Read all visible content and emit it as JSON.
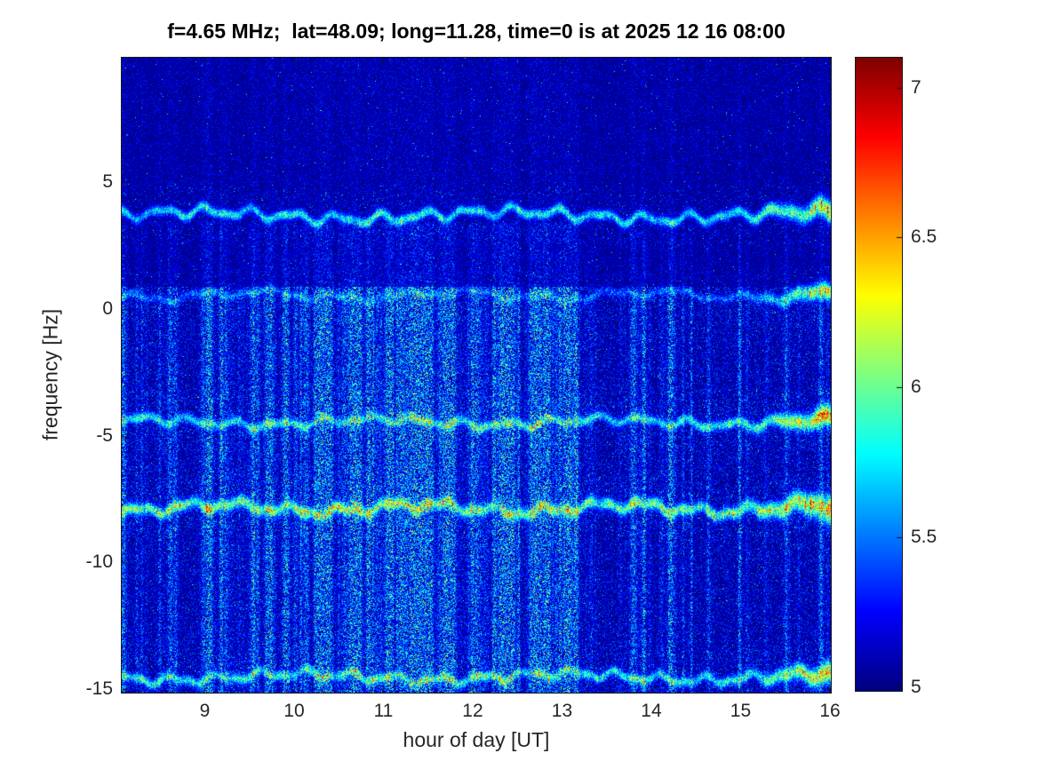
{
  "chart_data": {
    "type": "heatmap",
    "title": "f=4.65 MHz;  lat=48.09; long=11.28, time=0 is at 2025 12 16 08:00",
    "xlabel": "hour of day [UT]",
    "ylabel": "frequency [Hz]",
    "x_range": [
      8.07,
      16
    ],
    "y_range": [
      -15.1,
      9.9
    ],
    "x_ticks": [
      9,
      10,
      11,
      12,
      13,
      14,
      15,
      16
    ],
    "y_ticks": [
      5,
      0,
      -5,
      -10,
      -15
    ],
    "colormap": "jet",
    "color_limits": [
      4.99,
      7.1
    ],
    "colorbar_ticks": [
      7,
      6.5,
      6,
      5.5,
      5
    ],
    "grid": false,
    "legend": "colorbar-right",
    "background_value": 5.0,
    "seed": 7,
    "bands": [
      {
        "name": "band-plus-3.7Hz",
        "center_hz": 3.7,
        "wiggle_hz": 0.28,
        "width_hz": 0.13,
        "base_value": 6.0,
        "end_boost": 1.0
      },
      {
        "name": "band-plus-0.5Hz",
        "center_hz": 0.55,
        "wiggle_hz": 0.22,
        "width_hz": 0.11,
        "base_value": 5.45,
        "end_boost": 1.4
      },
      {
        "name": "band-minus-4.5Hz",
        "center_hz": -4.45,
        "wiggle_hz": 0.22,
        "width_hz": 0.13,
        "base_value": 5.85,
        "end_boost": 1.3
      },
      {
        "name": "band-minus-7.8Hz",
        "center_hz": -7.85,
        "wiggle_hz": 0.26,
        "width_hz": 0.16,
        "base_value": 6.15,
        "end_boost": 1.1
      },
      {
        "name": "band-minus-14.5Hz",
        "center_hz": -14.5,
        "wiggle_hz": 0.24,
        "width_hz": 0.13,
        "base_value": 5.9,
        "end_boost": 1.0
      }
    ],
    "vertical_streaks": {
      "count": 300,
      "freq_region_hz": [
        -15.1,
        0.9
      ],
      "typical_value": 5.6,
      "max_value": 6.4,
      "dense_hours": [
        9.0,
        13.2
      ]
    }
  }
}
